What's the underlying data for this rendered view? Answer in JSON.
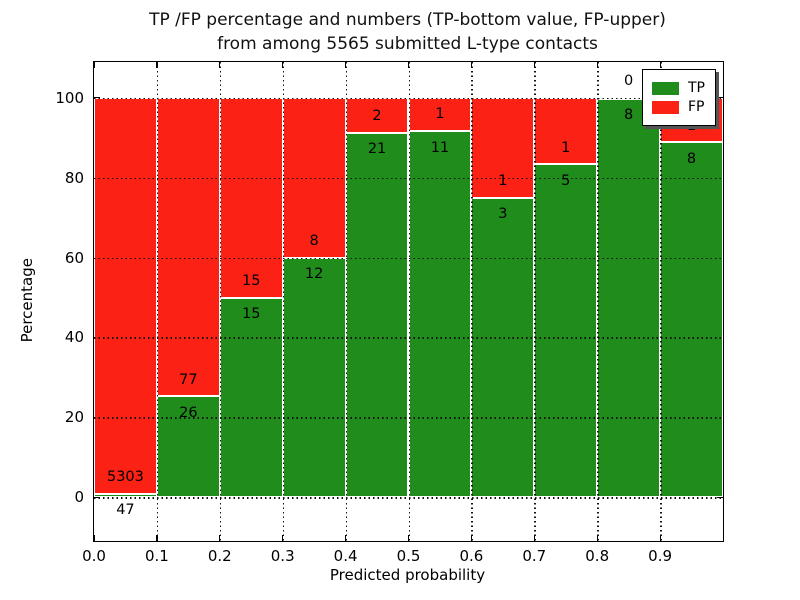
{
  "title": {
    "line1": "TP /FP percentage and numbers (TP-bottom value, FP-upper)",
    "line2": "from among 5565 submitted L-type contacts"
  },
  "chart_data": {
    "type": "bar",
    "stacked": true,
    "normalized_to_percent": true,
    "title": "TP /FP percentage and numbers (TP-bottom value, FP-upper) from among 5565 submitted L-type contacts",
    "xlabel": "Predicted probability",
    "ylabel": "Percentage",
    "categories": [
      "0.0-0.1",
      "0.1-0.2",
      "0.2-0.3",
      "0.3-0.4",
      "0.4-0.5",
      "0.5-0.6",
      "0.6-0.7",
      "0.7-0.8",
      "0.8-0.9",
      "0.9-1.0"
    ],
    "series": [
      {
        "name": "TP",
        "color": "#1f8c1c",
        "counts": [
          47,
          26,
          15,
          12,
          21,
          11,
          3,
          5,
          8,
          8
        ]
      },
      {
        "name": "FP",
        "color": "#fb2114",
        "counts": [
          5303,
          77,
          15,
          8,
          2,
          1,
          1,
          1,
          0,
          1
        ]
      }
    ],
    "tp_percent_of_bin": [
      0.9,
      25.2,
      50.0,
      60.0,
      91.3,
      91.7,
      75.0,
      83.3,
      100.0,
      88.9
    ],
    "xticks": [
      0.0,
      0.1,
      0.2,
      0.3,
      0.4,
      0.5,
      0.6,
      0.7,
      0.8,
      0.9
    ],
    "xtick_labels": [
      "0.0",
      "0.1",
      "0.2",
      "0.3",
      "0.4",
      "0.5",
      "0.6",
      "0.7",
      "0.8",
      "0.9"
    ],
    "yticks": [
      0,
      20,
      40,
      60,
      80,
      100
    ],
    "xlim": [
      0.0,
      1.0
    ],
    "ylim": [
      -11,
      109
    ],
    "grid": true,
    "grid_style": "dotted",
    "legend_position": "upper right",
    "annotation_rule": "FP count above each TP/FP boundary, TP count below it"
  }
}
